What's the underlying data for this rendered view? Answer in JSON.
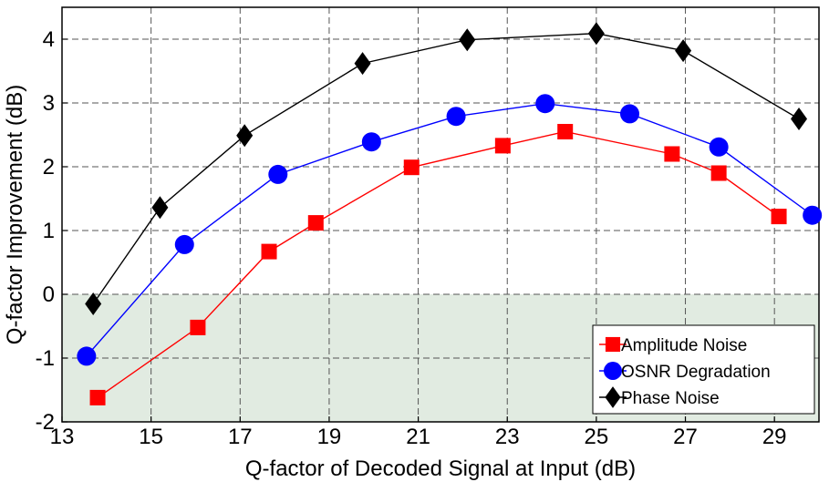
{
  "chart_data": {
    "type": "line",
    "title": "",
    "xlabel": "Q-factor of Decoded Signal at Input (dB)",
    "ylabel": "Q-factor Improvement (dB)",
    "xlim": [
      13,
      30
    ],
    "ylim": [
      -2,
      4.5
    ],
    "x_ticks": [
      13,
      15,
      17,
      19,
      21,
      23,
      25,
      27,
      29
    ],
    "y_ticks": [
      -2,
      -1,
      0,
      1,
      2,
      3,
      4
    ],
    "x_tick_labels": [
      "13",
      "15",
      "17",
      "19",
      "21",
      "23",
      "25",
      "27",
      "29"
    ],
    "y_tick_labels": [
      "-2",
      "-1",
      "0",
      "1",
      "2",
      "3",
      "4"
    ],
    "grid": true,
    "shaded_region": {
      "y_from": -2,
      "y_to": 0,
      "color": "#e1ebe1"
    },
    "legend_position": "bottom-right",
    "series": [
      {
        "name": "Amplitude Noise",
        "color": "#ff0000",
        "marker": "square",
        "x": [
          13.8,
          16.05,
          17.65,
          18.7,
          20.85,
          22.9,
          24.3,
          26.7,
          27.75,
          29.1
        ],
        "y": [
          -1.62,
          -0.52,
          0.67,
          1.12,
          1.99,
          2.33,
          2.55,
          2.2,
          1.9,
          1.22
        ]
      },
      {
        "name": "OSNR Degradation",
        "color": "#0000ff",
        "marker": "circle",
        "x": [
          13.55,
          15.75,
          17.85,
          19.95,
          21.85,
          23.85,
          25.75,
          27.75,
          29.85
        ],
        "y": [
          -0.97,
          0.78,
          1.88,
          2.39,
          2.79,
          2.99,
          2.83,
          2.31,
          1.24
        ]
      },
      {
        "name": "Phase Noise",
        "color": "#000000",
        "marker": "diamond",
        "x": [
          13.7,
          15.2,
          17.1,
          19.75,
          22.1,
          25.0,
          26.95,
          29.55
        ],
        "y": [
          -0.15,
          1.36,
          2.49,
          3.62,
          3.99,
          4.09,
          3.82,
          2.75
        ]
      }
    ]
  }
}
